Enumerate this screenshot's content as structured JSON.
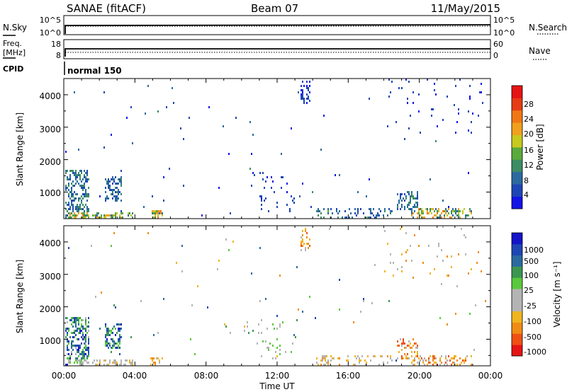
{
  "header": {
    "station": "SANAE (fitACF)",
    "beam": "Beam 07",
    "date": "11/May/2015"
  },
  "summary": {
    "nsky_label": "N.Sky",
    "nsky_ticks": [
      "10^5",
      "10^0"
    ],
    "nsearch_label": "N.Search",
    "nsearch_ticks": [
      "10^5",
      "10^0"
    ],
    "freq_label_top": "Freq.",
    "freq_label_unit": "[MHz]",
    "freq_ticks": [
      "18",
      "8"
    ],
    "nave_label": "Nave",
    "nave_ticks": [
      "60",
      "0"
    ],
    "cpid_label": "CPID",
    "cpid_value": "normal 150"
  },
  "axes": {
    "ylabel": "Slant Range [km]",
    "yticks": [
      "4000",
      "3000",
      "2000",
      "1000"
    ],
    "xticks": [
      "00:00",
      "04:00",
      "08:00",
      "12:00",
      "16:00",
      "20:00",
      "00:00"
    ],
    "xlabel": "Time UT"
  },
  "power_bar": {
    "label": "Power [dB]",
    "ticks": [
      "28",
      "24",
      "20",
      "16",
      "12",
      "8",
      "4"
    ]
  },
  "velocity_bar": {
    "label": "Velocity [m s⁻¹]",
    "ticks": [
      "1000",
      "500",
      "100",
      "25",
      "-25",
      "-100",
      "-500",
      "-1000"
    ]
  },
  "colors": {
    "power": [
      "#1414e6",
      "#1e46b4",
      "#2a6aa0",
      "#3c8c64",
      "#5aaa3c",
      "#c8c81e",
      "#f0a01e",
      "#f07814",
      "#e63c14",
      "#e61414"
    ],
    "velocity": [
      "#e61414",
      "#f05014",
      "#f08c14",
      "#f0b41e",
      "#b4b4b4",
      "#b4b4b4",
      "#5ac83c",
      "#3c9650",
      "#2a6aa0",
      "#1e46b4",
      "#1414c8"
    ]
  },
  "chart_data": [
    {
      "type": "heatmap",
      "name": "Power",
      "x_range": [
        "00:00",
        "24:00"
      ],
      "y_range": [
        180,
        4500
      ],
      "value_range": [
        0,
        30
      ],
      "clusters": [
        {
          "t": [
            0.1,
            1.4
          ],
          "r": [
            200,
            1700
          ],
          "v": [
            4,
            12
          ],
          "density": 0.45
        },
        {
          "t": [
            0.2,
            1.4
          ],
          "r": [
            180,
            380
          ],
          "v": [
            10,
            22
          ],
          "density": 0.55
        },
        {
          "t": [
            2.3,
            3.3
          ],
          "r": [
            700,
            1500
          ],
          "v": [
            4,
            10
          ],
          "density": 0.45
        },
        {
          "t": [
            1.6,
            3.9
          ],
          "r": [
            180,
            350
          ],
          "v": [
            8,
            20
          ],
          "density": 0.45
        },
        {
          "t": [
            4.9,
            5.6
          ],
          "r": [
            180,
            450
          ],
          "v": [
            8,
            22
          ],
          "density": 0.5
        },
        {
          "t": [
            10.1,
            12.6
          ],
          "r": [
            1100,
            1600
          ],
          "v": [
            2,
            6
          ],
          "density": 0.08
        },
        {
          "t": [
            11.0,
            13.0
          ],
          "r": [
            400,
            1000
          ],
          "v": [
            2,
            6
          ],
          "density": 0.1
        },
        {
          "t": [
            13.3,
            13.9
          ],
          "r": [
            3700,
            4450
          ],
          "v": [
            2,
            6
          ],
          "density": 0.3
        },
        {
          "t": [
            14.2,
            14.9
          ],
          "r": [
            200,
            500
          ],
          "v": [
            6,
            14
          ],
          "density": 0.35
        },
        {
          "t": [
            15.0,
            18.5
          ],
          "r": [
            200,
            500
          ],
          "v": [
            4,
            10
          ],
          "density": 0.2
        },
        {
          "t": [
            18.7,
            19.9
          ],
          "r": [
            400,
            1000
          ],
          "v": [
            4,
            10
          ],
          "density": 0.35
        },
        {
          "t": [
            19.5,
            23.0
          ],
          "r": [
            180,
            500
          ],
          "v": [
            6,
            22
          ],
          "density": 0.35
        },
        {
          "t": [
            18.0,
            23.6
          ],
          "r": [
            2800,
            4500
          ],
          "v": [
            2,
            6
          ],
          "density": 0.03
        }
      ],
      "scatter_density": 0.004
    },
    {
      "type": "heatmap",
      "name": "Velocity",
      "x_range": [
        "00:00",
        "24:00"
      ],
      "y_range": [
        180,
        4500
      ],
      "value_range": [
        -1000,
        1000
      ],
      "clusters": [
        {
          "t": [
            0.1,
            1.4
          ],
          "r": [
            200,
            1700
          ],
          "v": [
            25,
            900
          ],
          "density": 0.45
        },
        {
          "t": [
            0.2,
            1.4
          ],
          "r": [
            180,
            380
          ],
          "v": [
            -300,
            200
          ],
          "density": 0.5
        },
        {
          "t": [
            2.3,
            3.3
          ],
          "r": [
            700,
            1500
          ],
          "v": [
            100,
            900
          ],
          "density": 0.45
        },
        {
          "t": [
            1.6,
            3.9
          ],
          "r": [
            180,
            350
          ],
          "v": [
            -400,
            100
          ],
          "density": 0.4
        },
        {
          "t": [
            4.9,
            5.6
          ],
          "r": [
            180,
            450
          ],
          "v": [
            -600,
            -50
          ],
          "density": 0.45
        },
        {
          "t": [
            10.1,
            12.6
          ],
          "r": [
            1100,
            1600
          ],
          "v": [
            -300,
            300
          ],
          "density": 0.08
        },
        {
          "t": [
            11.0,
            13.0
          ],
          "r": [
            400,
            1000
          ],
          "v": [
            -300,
            300
          ],
          "density": 0.1
        },
        {
          "t": [
            13.3,
            13.9
          ],
          "r": [
            3700,
            4450
          ],
          "v": [
            -700,
            -100
          ],
          "density": 0.3
        },
        {
          "t": [
            14.2,
            14.9
          ],
          "r": [
            200,
            500
          ],
          "v": [
            -500,
            -50
          ],
          "density": 0.35
        },
        {
          "t": [
            15.0,
            18.5
          ],
          "r": [
            200,
            500
          ],
          "v": [
            -500,
            0
          ],
          "density": 0.2
        },
        {
          "t": [
            18.7,
            19.9
          ],
          "r": [
            400,
            1000
          ],
          "v": [
            -800,
            -100
          ],
          "density": 0.35
        },
        {
          "t": [
            19.5,
            23.0
          ],
          "r": [
            180,
            500
          ],
          "v": [
            -700,
            -100
          ],
          "density": 0.35
        },
        {
          "t": [
            18.0,
            23.6
          ],
          "r": [
            2800,
            4500
          ],
          "v": [
            -600,
            0
          ],
          "density": 0.03
        }
      ],
      "scatter_density": 0.004
    }
  ]
}
